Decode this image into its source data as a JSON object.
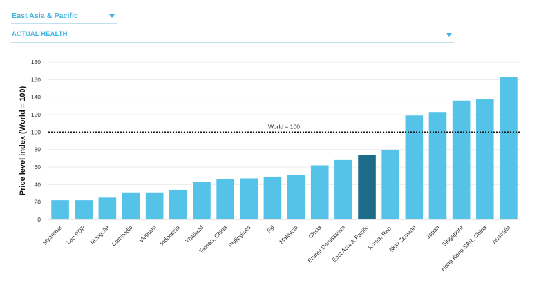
{
  "filters": {
    "region_label": "East Asia & Pacific",
    "indicator_label": "ACTUAL HEALTH"
  },
  "colors": {
    "bar": "#55c3e8",
    "highlight": "#1c6c89",
    "dropdown_text": "#3fb4de"
  },
  "icons": {
    "dropdown_caret": "caret-down-icon"
  },
  "chart_data": {
    "type": "bar",
    "ylabel": "Price level index (World = 100)",
    "ylim": [
      0,
      180
    ],
    "yticks": [
      0,
      20,
      40,
      60,
      80,
      100,
      120,
      140,
      160,
      180
    ],
    "grid": true,
    "reference_line": {
      "value": 100,
      "label": "World = 100",
      "style": "dotted"
    },
    "highlight_category": "East Asia & Pacific",
    "categories": [
      "Myanmar",
      "Lao PDR",
      "Mongolia",
      "Cambodia",
      "Vietnam",
      "Indonesia",
      "Thailand",
      "Taiwan, China",
      "Philippines",
      "Fiji",
      "Malaysia",
      "China",
      "Brunei Darussalam",
      "East Asia & Pacific",
      "Korea, Rep.",
      "New Zealand",
      "Japan",
      "Singapore",
      "Hong Kong SAR, China",
      "Australia"
    ],
    "values": [
      22,
      22,
      25,
      31,
      31,
      34,
      43,
      46,
      47,
      49,
      51,
      62,
      68,
      74,
      79,
      119,
      123,
      136,
      138,
      163
    ]
  }
}
